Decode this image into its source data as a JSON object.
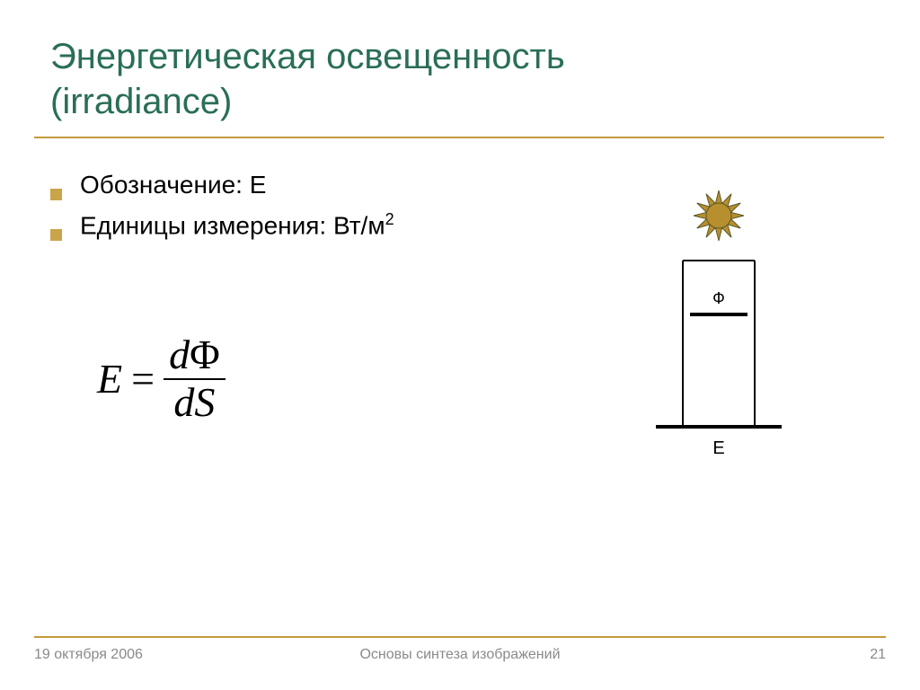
{
  "colors": {
    "title_text": "#2a6e57",
    "accent_rule": "#c29a3a",
    "bullet": "#c8a44a",
    "footer_rule": "#c29a3a",
    "footer_text": "#8a8a8a",
    "sun_fill": "#b88f2e",
    "sun_stroke": "#5a5a2a",
    "diagram_stroke": "#000000"
  },
  "title": {
    "line1": "Энергетическая освещенность",
    "line2": "(irradiance)"
  },
  "bullets": [
    {
      "label": "Обозначение: E"
    },
    {
      "label_prefix": "Единицы измерения: Вт/м",
      "sup": "2"
    }
  ],
  "formula": {
    "lhs": "E",
    "eq": "=",
    "num_d": "d",
    "num_phi": "Φ",
    "den_d": "d",
    "den_S": "S"
  },
  "diagram": {
    "label_phi": "Ф",
    "label_E": "E",
    "phi_fontsize": 18,
    "E_fontsize": 20
  },
  "footer": {
    "date": "19 октября 2006",
    "center": "Основы синтеза изображений",
    "page": "21"
  }
}
